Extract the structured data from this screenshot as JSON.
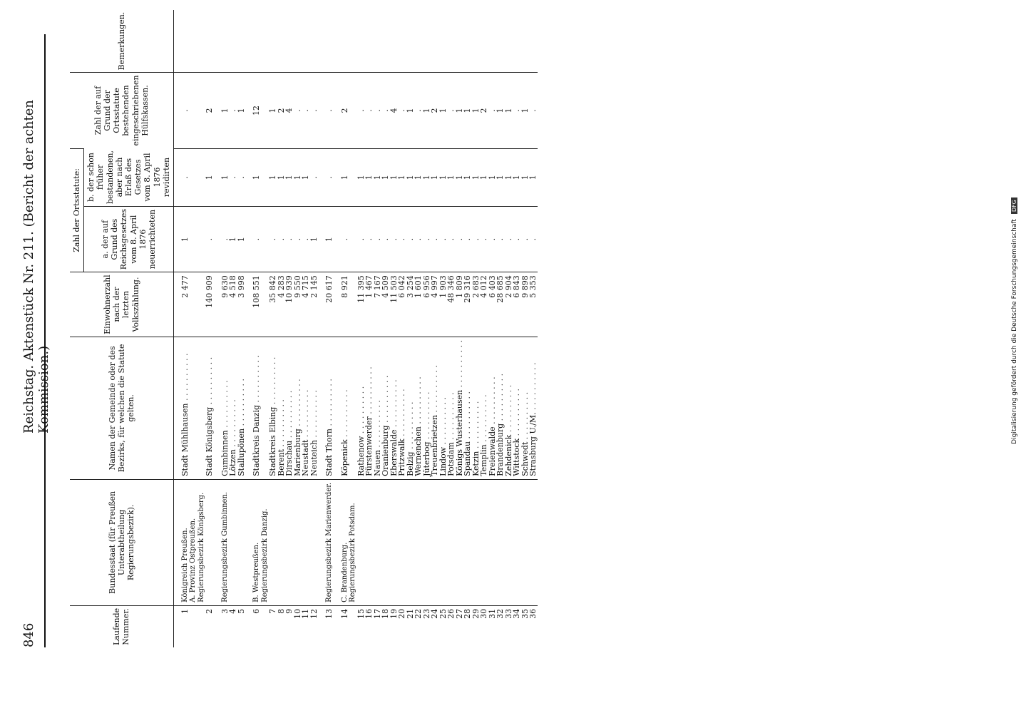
{
  "header": {
    "page_number": "846",
    "title": "Reichstag. Aktenstück Nr. 211. (Bericht der achten Kommission.)"
  },
  "columns": {
    "nr": "Laufende Nummer.",
    "staat": "Bundesstaat (für Preußen Unterabtheilung Regierungsbezirk).",
    "name": "Namen der Gemeinde oder des Bezirks, für welchen die Statute gelten.",
    "einwohner": "Einwohnerzahl nach der letzten Volkszählung.",
    "group": "Zahl der Ortsstatute:",
    "a": "a. der auf Grund des Reichsgesetzes vom 8. April 1876 neuerrichteten",
    "b": "b. der schon früher bestandenen, aber nach Erlaß des Gesetzes vom 8. April 1876 revidirten",
    "kassen": "Zahl der auf Grund der Ortsstatute bestehenden eingeschriebenen Hülfskassen.",
    "bem": "Bemerkungen."
  },
  "groups": [
    {
      "labels": [
        "Königreich Preußen.",
        "A. Provinz Ostpreußen.",
        "Regierungsbezirk Königsberg."
      ],
      "rows": [
        {
          "nr": "1",
          "name": "Stadt Mühlhausen",
          "ew": "2 477",
          "a": "1",
          "b": ".",
          "c": "."
        },
        {
          "nr": "2",
          "name": "Stadt Königsberg",
          "ew": "140 909",
          "a": ".",
          "b": "1",
          "c": "2"
        }
      ]
    },
    {
      "labels": [
        "Regierungsbezirk Gumbinnen."
      ],
      "rows": [
        {
          "nr": "3",
          "name": "Gumbinnen",
          "ew": "9 630",
          "a": ".",
          "b": "1",
          "c": "1"
        },
        {
          "nr": "4",
          "name": "Lötzen",
          "ew": "4 518",
          "a": "1",
          "b": ".",
          "c": "."
        },
        {
          "nr": "5",
          "name": "Stallupönen",
          "ew": "3 998",
          "a": "1",
          "b": ".",
          "c": "1"
        }
      ]
    },
    {
      "labels": [
        "B. Westpreußen.",
        "Regierungsbezirk Danzig."
      ],
      "rows": [
        {
          "nr": "6",
          "name": "Stadtkreis Danzig",
          "ew": "108 551",
          "a": ".",
          "b": "1",
          "c": "12"
        },
        {
          "nr": "7",
          "name": "Stadtkreis Elbing",
          "ew": "35 842",
          "a": ".",
          "b": "1",
          "c": "1"
        },
        {
          "nr": "8",
          "name": "Berent",
          "ew": "4 283",
          "a": ".",
          "b": "1",
          "c": "2"
        },
        {
          "nr": "9",
          "name": "Dirschau",
          "ew": "10 939",
          "a": ".",
          "b": "1",
          "c": "4"
        },
        {
          "nr": "10",
          "name": "Marienburg",
          "ew": "9 550",
          "a": ".",
          "b": "1",
          "c": "."
        },
        {
          "nr": "11",
          "name": "Neustadt",
          "ew": "4 715",
          "a": ".",
          "b": "1",
          "c": "."
        },
        {
          "nr": "12",
          "name": "Neuteich",
          "ew": "2 145",
          "a": "1",
          "b": ".",
          "c": "."
        }
      ]
    },
    {
      "labels": [
        "Regierungsbezirk Marienwerder."
      ],
      "rows": [
        {
          "nr": "13",
          "name": "Stadt Thorn",
          "ew": "20 617",
          "a": "1",
          "b": ".",
          "c": "."
        }
      ]
    },
    {
      "labels": [
        "C. Brandenburg.",
        "Regierungsbezirk Potsdam."
      ],
      "rows": [
        {
          "nr": "14",
          "name": "Köpenick",
          "ew": "8 921",
          "a": ".",
          "b": "1",
          "c": "2"
        },
        {
          "nr": "15",
          "name": "Rathenow",
          "ew": "11 395",
          "a": ".",
          "b": "1",
          "c": "."
        },
        {
          "nr": "16",
          "name": "Fürstenwerder",
          "ew": "1 467",
          "a": ".",
          "b": "1",
          "c": "."
        },
        {
          "nr": "17",
          "name": "Nauen",
          "ew": "7 167",
          "a": ".",
          "b": "1",
          "c": "."
        },
        {
          "nr": "18",
          "name": "Oranienburg",
          "ew": "4 509",
          "a": ".",
          "b": "1",
          "c": "."
        },
        {
          "nr": "19",
          "name": "Eberswalde",
          "ew": "11 503",
          "a": ".",
          "b": "1",
          "c": "4"
        },
        {
          "nr": "20",
          "name": "Pritzwalk",
          "ew": "6 042",
          "a": ".",
          "b": "1",
          "c": "."
        },
        {
          "nr": "21",
          "name": "Belzig",
          "ew": "3 254",
          "a": ".",
          "b": "1",
          "c": "1"
        },
        {
          "nr": "22",
          "name": "Wernenchen",
          "ew": "1 601",
          "a": ".",
          "b": "1",
          "c": "."
        },
        {
          "nr": "23",
          "name": "Jüterbog",
          "ew": "6 956",
          "a": ".",
          "b": "1",
          "c": "1"
        },
        {
          "nr": "24",
          "name": "Treuenbrietzen",
          "ew": "4 997",
          "a": ".",
          "b": "1",
          "c": "2"
        },
        {
          "nr": "25",
          "name": "Lindow",
          "ew": "1 903",
          "a": ".",
          "b": "1",
          "c": "1"
        },
        {
          "nr": "26",
          "name": "Potsdam",
          "ew": "48 346",
          "a": ".",
          "b": "1",
          "c": "."
        },
        {
          "nr": "27",
          "name": "Königs Wusterhausen",
          "ew": "1 809",
          "a": ".",
          "b": "1",
          "c": "1"
        },
        {
          "nr": "28",
          "name": "Spandau",
          "ew": "29 316",
          "a": ".",
          "b": "1",
          "c": "1"
        },
        {
          "nr": "29",
          "name": "Ketzin",
          "ew": "2 683",
          "a": ".",
          "b": "1",
          "c": "1"
        },
        {
          "nr": "30",
          "name": "Templin",
          "ew": "4 012",
          "a": ".",
          "b": "1",
          "c": "2"
        },
        {
          "nr": "31",
          "name": "Freienwalde",
          "ew": "6 403",
          "a": ".",
          "b": "1",
          "c": "."
        },
        {
          "nr": "32",
          "name": "Brandenburg",
          "ew": "28 685",
          "a": ".",
          "b": "1",
          "c": "1"
        },
        {
          "nr": "33",
          "name": "Zehdenick",
          "ew": "2 904",
          "a": ".",
          "b": "1",
          "c": "1"
        },
        {
          "nr": "34",
          "name": "Wittstock",
          "ew": "6 843",
          "a": ".",
          "b": "1",
          "c": "."
        },
        {
          "nr": "35",
          "name": "Schwedt",
          "ew": "9 898",
          "a": ".",
          "b": "1",
          "c": "1"
        },
        {
          "nr": "36",
          "name": "Strasburg U./M.",
          "ew": "5 353",
          "a": ".",
          "b": "1",
          "c": "."
        }
      ]
    }
  ],
  "credit": {
    "text": "Digitalisierung gefördert durch die Deutsche Forschungsgemeinschaft",
    "badge": "DFG"
  }
}
